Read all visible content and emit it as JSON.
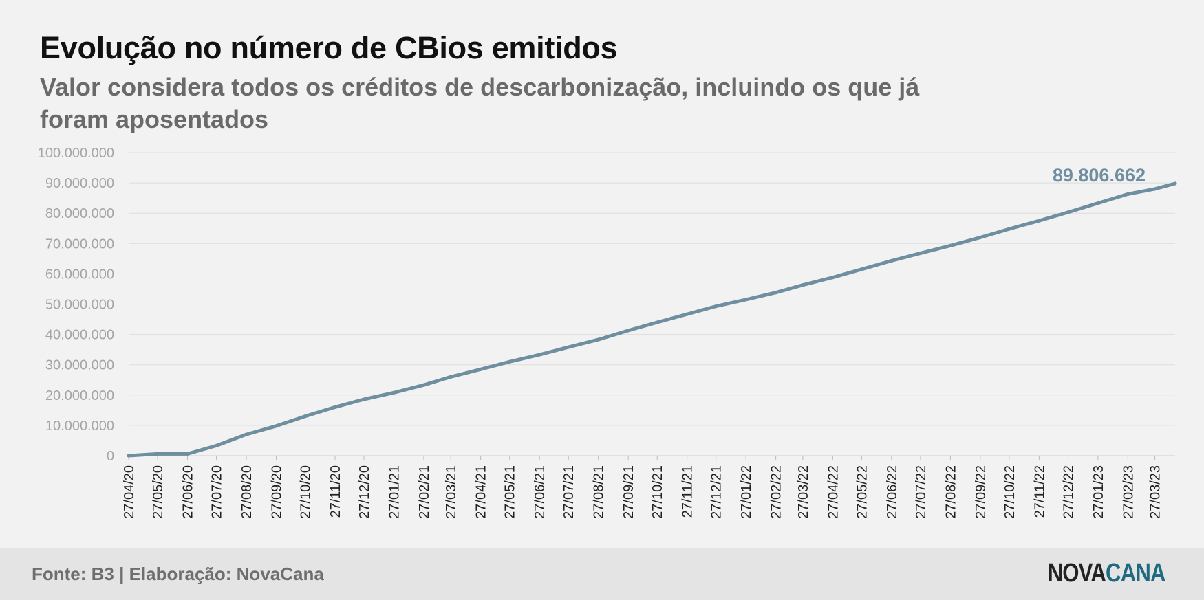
{
  "colors": {
    "line": "#6f8e9f",
    "grid": "#dddddd",
    "tick": "#a5a5a5",
    "label": "#222222",
    "logo_accent": "#1f6a80"
  },
  "footer": {
    "source": "Fonte: B3 | Elaboração: NovaCana",
    "logo_part1": "NOVA",
    "logo_part2": "CANA"
  },
  "chart_data": {
    "type": "line",
    "title": "Evolução no número de CBios emitidos",
    "subtitle": "Valor considera todos os créditos de descarbonização, incluindo os que já foram aposentados",
    "ylim": [
      0,
      100000000
    ],
    "y_ticks": [
      0,
      10000000,
      20000000,
      30000000,
      40000000,
      50000000,
      60000000,
      70000000,
      80000000,
      90000000,
      100000000
    ],
    "y_tick_labels": [
      "0",
      "10.000.000",
      "20.000.000",
      "30.000.000",
      "40.000.000",
      "50.000.000",
      "60.000.000",
      "70.000.000",
      "80.000.000",
      "90.000.000",
      "100.000.000"
    ],
    "x_tick_labels": [
      "27/04/20",
      "27/05/20",
      "27/06/20",
      "27/07/20",
      "27/08/20",
      "27/09/20",
      "27/10/20",
      "27/11/20",
      "27/12/20",
      "27/01/21",
      "27/02/21",
      "27/03/21",
      "27/04/21",
      "27/05/21",
      "27/06/21",
      "27/07/21",
      "27/08/21",
      "27/09/21",
      "27/10/21",
      "27/11/21",
      "27/12/21",
      "27/01/22",
      "27/02/22",
      "27/03/22",
      "27/04/22",
      "27/05/22",
      "27/06/22",
      "27/07/22",
      "27/08/22",
      "27/09/22",
      "27/10/22",
      "27/11/22",
      "27/12/22",
      "27/01/23",
      "27/02/23",
      "27/03/23"
    ],
    "grid": true,
    "series": [
      {
        "x": [
          "27/04/20",
          "27/05/20",
          "27/06/20",
          "27/07/20",
          "27/08/20",
          "27/09/20",
          "27/10/20",
          "27/11/20",
          "27/12/20",
          "27/01/21",
          "27/02/21",
          "27/03/21",
          "27/04/21",
          "27/05/21",
          "27/06/21",
          "27/07/21",
          "27/08/21",
          "27/09/21",
          "27/10/21",
          "27/11/21",
          "27/12/21",
          "27/01/22",
          "27/02/22",
          "27/03/22",
          "27/04/22",
          "27/05/22",
          "27/06/22",
          "27/07/22",
          "27/08/22",
          "27/09/22",
          "27/10/22",
          "27/11/22",
          "27/12/22",
          "27/01/23",
          "27/02/23",
          "27/03/23",
          "17/04/23"
        ],
        "values": [
          0,
          600000,
          600000,
          3300000,
          7000000,
          9800000,
          13000000,
          16000000,
          18600000,
          20800000,
          23300000,
          26000000,
          28500000,
          31000000,
          33300000,
          35800000,
          38300000,
          41300000,
          44000000,
          46700000,
          49300000,
          51500000,
          53800000,
          56300000,
          58800000,
          61500000,
          64300000,
          66800000,
          69300000,
          72000000,
          74800000,
          77500000,
          80300000,
          83300000,
          86300000,
          88000000,
          89806662
        ]
      }
    ],
    "annotations": [
      {
        "text": "89.806.662",
        "x": "17/04/23",
        "y": 89806662
      }
    ]
  }
}
